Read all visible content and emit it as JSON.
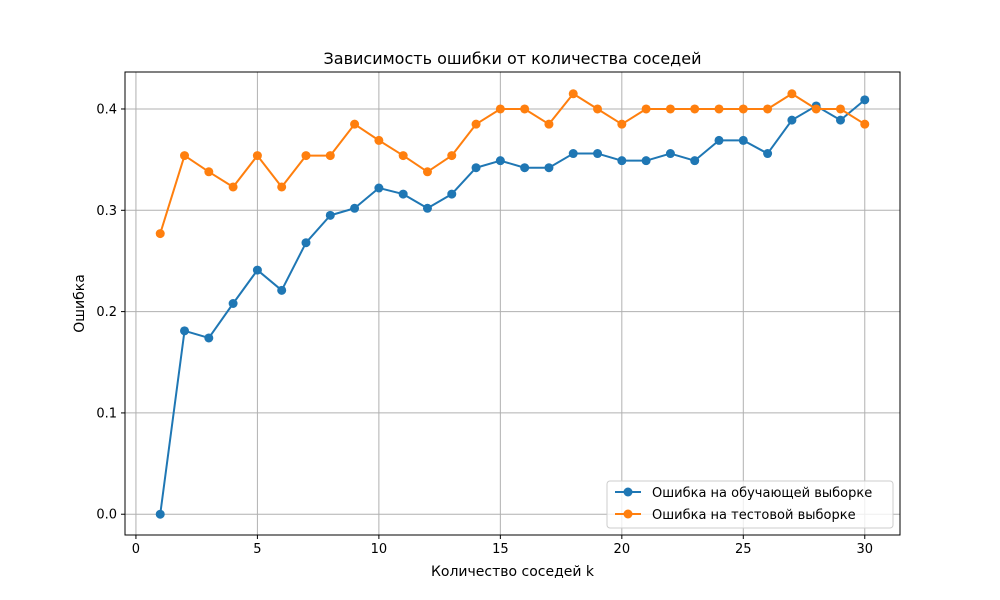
{
  "chart_data": {
    "type": "line",
    "title": "Зависимость ошибки от количества соседей",
    "xlabel": "Количество соседей k",
    "ylabel": "Ошибка",
    "xlim": [
      -0.45,
      31.45
    ],
    "ylim": [
      -0.0205,
      0.4365
    ],
    "xticks": [
      0,
      5,
      10,
      15,
      20,
      25,
      30
    ],
    "yticks": [
      0.0,
      0.1,
      0.2,
      0.3,
      0.4
    ],
    "xtick_labels": [
      "0",
      "5",
      "10",
      "15",
      "20",
      "25",
      "30"
    ],
    "ytick_labels": [
      "0.0",
      "0.1",
      "0.2",
      "0.3",
      "0.4"
    ],
    "grid": true,
    "legend_position": "bottom-right",
    "x": [
      1,
      2,
      3,
      4,
      5,
      6,
      7,
      8,
      9,
      10,
      11,
      12,
      13,
      14,
      15,
      16,
      17,
      18,
      19,
      20,
      21,
      22,
      23,
      24,
      25,
      26,
      27,
      28,
      29,
      30
    ],
    "series": [
      {
        "name": "Ошибка на обучающей выборке",
        "color": "#1f77b4",
        "marker": "circle",
        "values": [
          0.0,
          0.181,
          0.174,
          0.208,
          0.241,
          0.221,
          0.268,
          0.295,
          0.302,
          0.322,
          0.316,
          0.302,
          0.316,
          0.342,
          0.349,
          0.342,
          0.342,
          0.356,
          0.356,
          0.349,
          0.349,
          0.356,
          0.349,
          0.369,
          0.369,
          0.356,
          0.389,
          0.403,
          0.389,
          0.409
        ]
      },
      {
        "name": "Ошибка на тестовой выборке",
        "color": "#ff7f0e",
        "marker": "circle",
        "values": [
          0.277,
          0.354,
          0.338,
          0.323,
          0.354,
          0.323,
          0.354,
          0.354,
          0.385,
          0.369,
          0.354,
          0.338,
          0.354,
          0.385,
          0.4,
          0.4,
          0.385,
          0.415,
          0.4,
          0.385,
          0.4,
          0.4,
          0.4,
          0.4,
          0.4,
          0.4,
          0.415,
          0.4,
          0.4,
          0.385
        ]
      }
    ]
  }
}
